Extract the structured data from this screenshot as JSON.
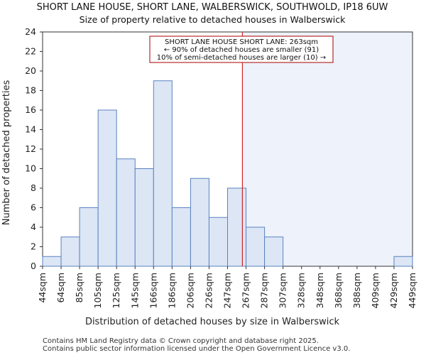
{
  "chart_data": {
    "type": "bar",
    "title": "SHORT LANE HOUSE, SHORT LANE, WALBERSWICK, SOUTHWOLD, IP18 6UW",
    "subtitle": "Size of property relative to detached houses in Walberswick",
    "xlabel": "Distribution of detached houses by size in Walberswick",
    "ylabel": "Number of detached properties",
    "ylim": [
      0,
      24
    ],
    "yticks": [
      0,
      2,
      4,
      6,
      8,
      10,
      12,
      14,
      16,
      18,
      20,
      22,
      24
    ],
    "x_tick_labels": [
      "44sqm",
      "64sqm",
      "85sqm",
      "105sqm",
      "125sqm",
      "145sqm",
      "166sqm",
      "186sqm",
      "206sqm",
      "226sqm",
      "247sqm",
      "267sqm",
      "287sqm",
      "307sqm",
      "328sqm",
      "348sqm",
      "368sqm",
      "388sqm",
      "409sqm",
      "429sqm",
      "449sqm"
    ],
    "values": [
      1,
      3,
      6,
      16,
      11,
      10,
      19,
      6,
      9,
      5,
      8,
      4,
      3,
      0,
      0,
      0,
      0,
      0,
      0,
      1
    ],
    "property_size_bin_position": 10.8,
    "highlight_from_bin": 10.8,
    "annotation": {
      "line1": "SHORT LANE HOUSE SHORT LANE: 263sqm",
      "line2": "← 90% of detached houses are smaller (91)",
      "line3": "10% of semi-detached houses are larger (10) →"
    },
    "colors": {
      "bar_fill": "#dce6f5",
      "bar_stroke": "#5a82c0",
      "highlight_bg": "#eef2fb",
      "marker_line": "#cc0000",
      "annotation_border": "#aa0000",
      "axis": "#333333"
    }
  },
  "footer": {
    "line1": "Contains HM Land Registry data © Crown copyright and database right 2025.",
    "line2": "Contains public sector information licensed under the Open Government Licence v3.0."
  }
}
